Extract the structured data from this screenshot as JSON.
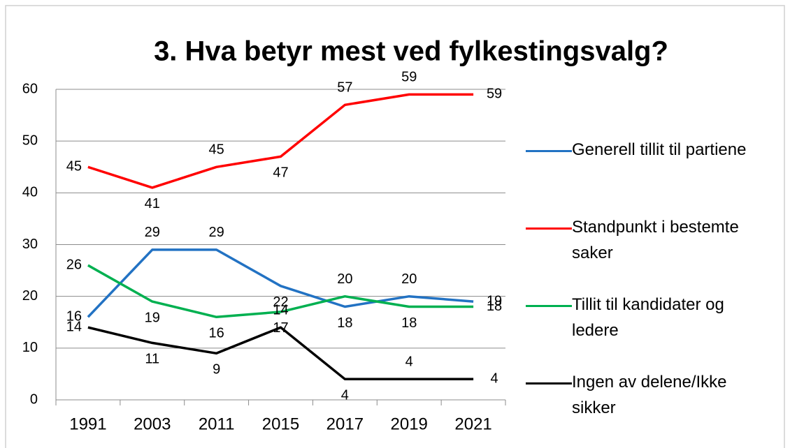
{
  "chart_data": {
    "type": "line",
    "title": "3. Hva betyr mest ved fylkestingsvalg?",
    "categories": [
      "1991",
      "2003",
      "2011",
      "2015",
      "2017",
      "2019",
      "2021"
    ],
    "series": [
      {
        "name": "Generell tillit til partiene",
        "color": "#2272c3",
        "values": [
          16,
          29,
          29,
          22,
          18,
          20,
          19
        ]
      },
      {
        "name": "Standpunkt i bestemte saker",
        "color": "#ff0000",
        "values": [
          45,
          41,
          45,
          47,
          57,
          59,
          59
        ]
      },
      {
        "name": "Tillit til kandidater og ledere",
        "color": "#00b050",
        "values": [
          26,
          19,
          16,
          17,
          20,
          18,
          18
        ]
      },
      {
        "name": "Ingen av delene/Ikke sikker",
        "color": "#000000",
        "values": [
          14,
          11,
          9,
          14,
          4,
          4,
          4
        ]
      }
    ],
    "ylim": [
      0,
      60
    ],
    "yticks": [
      0,
      10,
      20,
      30,
      40,
      50,
      60
    ],
    "grid": true,
    "legend": "right"
  }
}
